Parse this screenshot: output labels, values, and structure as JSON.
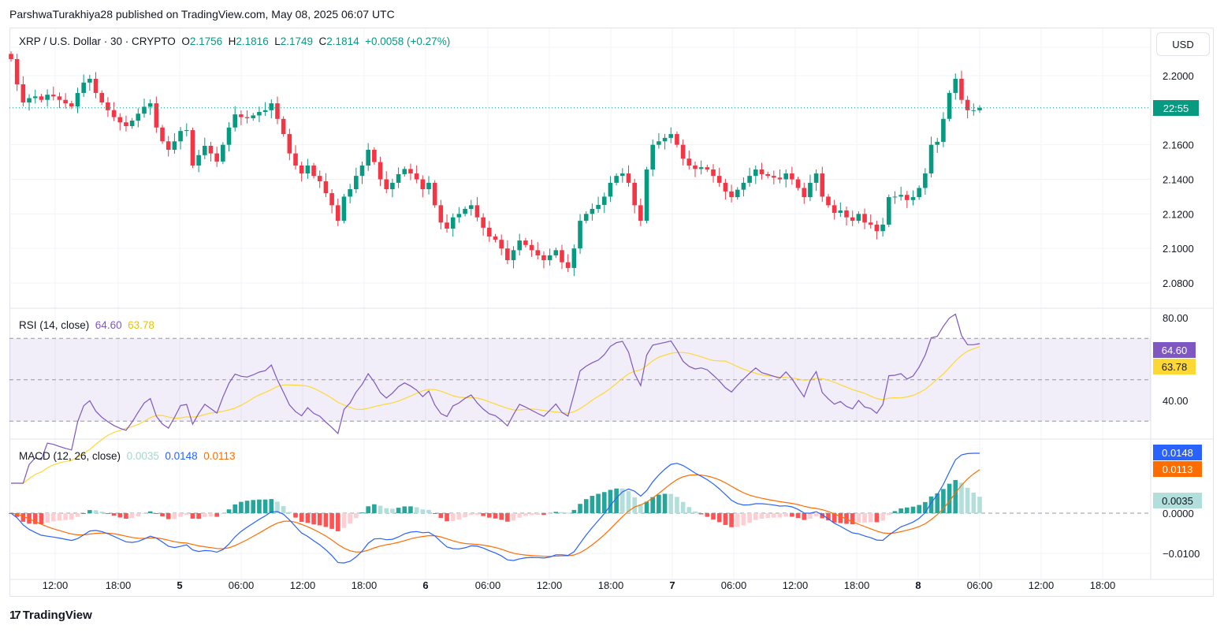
{
  "header": {
    "published": "ParshwaTurakhiya28 published on TradingView.com, May 08, 2025 06:07 UTC"
  },
  "legend": {
    "symbol": "XRP / U.S. Dollar · 30 · CRYPTO",
    "o_label": "O",
    "o": "2.1756",
    "h_label": "H",
    "h": "2.1816",
    "l_label": "L",
    "l": "2.1749",
    "c_label": "C",
    "c": "2.1814",
    "change": "+0.0058 (+0.27%)"
  },
  "currency": "USD",
  "price_tag": "22:55",
  "rsi": {
    "label": "RSI (14, close)",
    "value": "64.60",
    "ma": "63.78"
  },
  "macd": {
    "label": "MACD (12, 26, close)",
    "hist": "0.0035",
    "macd": "0.0148",
    "signal": "0.0113"
  },
  "brand": "TradingView",
  "colors": {
    "up": "#089981",
    "down": "#f23645",
    "rsi": "#7e57c2",
    "rsi_ma": "#fdd835",
    "macd": "#2962ff",
    "signal": "#ff6d00"
  },
  "chart_data": {
    "type": "candlestick",
    "title": "XRP / U.S. Dollar · 30 · CRYPTO",
    "y_ticks": [
      "2.2000",
      "2.1600",
      "2.1400",
      "2.1200",
      "2.1000",
      "2.0800"
    ],
    "ylim": [
      2.07,
      2.225
    ],
    "x_ticks": [
      "12:00",
      "18:00",
      "5",
      "06:00",
      "12:00",
      "18:00",
      "6",
      "06:00",
      "12:00",
      "18:00",
      "7",
      "06:00",
      "12:00",
      "18:00",
      "8",
      "06:00",
      "12:00",
      "18:00"
    ],
    "rsi_ticks": [
      "80.00",
      "40.00"
    ],
    "macd_ticks": [
      "0.0000",
      "−0.0100"
    ],
    "closes": [
      2.2096,
      2.195,
      2.1845,
      2.187,
      2.188,
      2.186,
      2.189,
      2.188,
      2.186,
      2.184,
      2.1822,
      2.19,
      2.196,
      2.1982,
      2.19,
      2.1845,
      2.18,
      2.176,
      2.173,
      2.1708,
      2.174,
      2.178,
      2.182,
      2.184,
      2.17,
      2.162,
      2.1571,
      2.162,
      2.168,
      2.1685,
      2.148,
      2.154,
      2.1594,
      2.155,
      2.1503,
      2.16,
      2.17,
      2.1776,
      2.176,
      2.1754,
      2.177,
      2.179,
      2.18,
      2.184,
      2.175,
      2.1662,
      2.155,
      2.148,
      2.1434,
      2.148,
      2.142,
      2.1389,
      2.132,
      2.125,
      2.116,
      2.13,
      2.1343,
      2.142,
      2.148,
      2.1571,
      2.15,
      2.14,
      2.1343,
      2.138,
      2.143,
      2.146,
      2.1434,
      2.14,
      2.1343,
      2.138,
      2.125,
      2.115,
      2.1115,
      2.118,
      2.12,
      2.1229,
      2.125,
      2.118,
      2.112,
      2.1069,
      2.105,
      2.1,
      2.0932,
      2.099,
      2.1046,
      2.102,
      2.099,
      2.096,
      2.0932,
      2.096,
      2.099,
      2.092,
      2.0887,
      2.1,
      2.116,
      2.12,
      2.1229,
      2.1252,
      2.13,
      2.138,
      2.142,
      2.1434,
      2.138,
      2.125,
      2.116,
      2.1457,
      2.16,
      2.162,
      2.164,
      2.1662,
      2.16,
      2.152,
      2.148,
      2.146,
      2.147,
      2.1457,
      2.142,
      2.138,
      2.133,
      2.1297,
      2.134,
      2.138,
      2.142,
      2.1457,
      2.143,
      2.142,
      2.141,
      2.14,
      2.1434,
      2.14,
      2.135,
      2.1297,
      2.138,
      2.1434,
      2.13,
      2.125,
      2.1206,
      2.122,
      2.118,
      2.116,
      2.12,
      2.115,
      2.1138,
      2.11,
      2.1138,
      2.1297,
      2.13,
      2.131,
      2.128,
      2.1297,
      2.135,
      2.1434,
      2.16,
      2.1617,
      2.175,
      2.19,
      2.1982,
      2.186,
      2.18,
      2.18,
      2.1814
    ]
  }
}
